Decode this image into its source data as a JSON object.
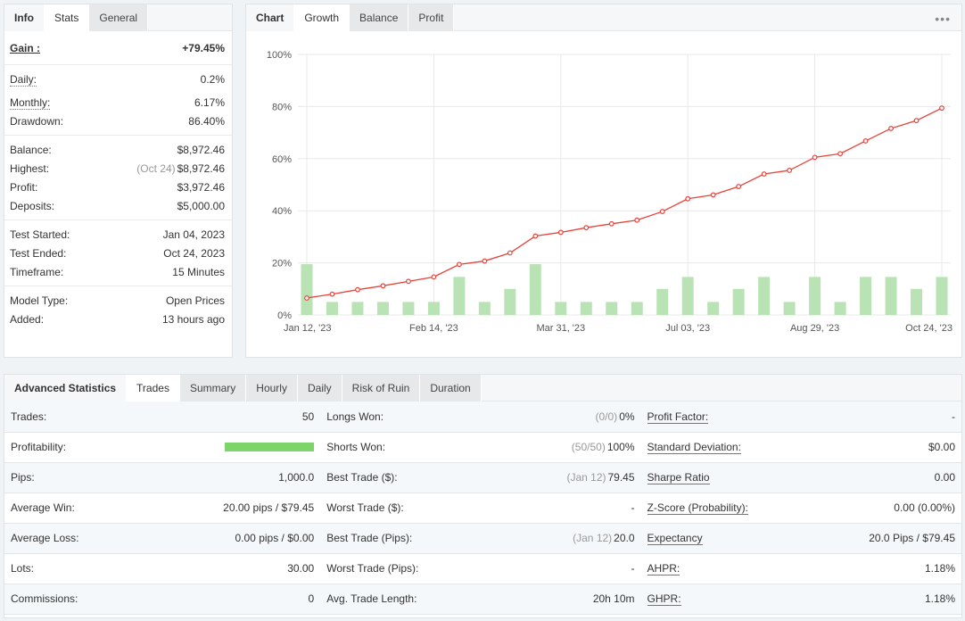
{
  "info": {
    "tabs": [
      "Info",
      "Stats",
      "General"
    ],
    "gain_label": "Gain :",
    "gain_value": "+79.45%",
    "daily_label": "Daily:",
    "daily_value": "0.2%",
    "monthly_label": "Monthly:",
    "monthly_value": "6.17%",
    "drawdown_label": "Drawdown:",
    "drawdown_value": "86.40%",
    "balance_label": "Balance:",
    "balance_value": "$8,972.46",
    "highest_label": "Highest:",
    "highest_date": "(Oct 24)",
    "highest_value": "$8,972.46",
    "profit_label": "Profit:",
    "profit_value": "$3,972.46",
    "deposits_label": "Deposits:",
    "deposits_value": "$5,000.00",
    "test_started_label": "Test Started:",
    "test_started_value": "Jan 04, 2023",
    "test_ended_label": "Test Ended:",
    "test_ended_value": "Oct 24, 2023",
    "timeframe_label": "Timeframe:",
    "timeframe_value": "15 Minutes",
    "model_type_label": "Model Type:",
    "model_type_value": "Open Prices",
    "added_label": "Added:",
    "added_value": "13 hours ago"
  },
  "chart_panel": {
    "tabs": [
      "Chart",
      "Growth",
      "Balance",
      "Profit"
    ],
    "menu_icon": "more-dots-icon",
    "colors": {
      "line": "#e8413a",
      "bar": "#b9e3b4",
      "grid": "#e8e8e8"
    }
  },
  "chart_data": {
    "type": "bar+line",
    "y_ticks": [
      "0%",
      "20%",
      "40%",
      "60%",
      "80%",
      "100%"
    ],
    "ylim": [
      0,
      100
    ],
    "x_tick_labels": [
      "Jan 12, '23",
      "Feb 14, '23",
      "Mar 31, '23",
      "Jul 03, '23",
      "Aug 29, '23",
      "Oct 24, '23"
    ],
    "growth_line": [
      6.5,
      8,
      9.7,
      11.2,
      12.9,
      14.6,
      19.4,
      20.7,
      23.8,
      30.3,
      31.7,
      33.5,
      35,
      36.4,
      39.7,
      44.6,
      46.1,
      49.3,
      54.1,
      55.5,
      60.5,
      61.9,
      66.8,
      71.6,
      74.6,
      79.4
    ],
    "bars": [
      19.5,
      5,
      5,
      5,
      5,
      5,
      14.6,
      5,
      10,
      19.5,
      5,
      5,
      5,
      5,
      10,
      14.6,
      5,
      10,
      14.6,
      5,
      14.6,
      5,
      14.6,
      14.6,
      10,
      14.6
    ]
  },
  "advanced": {
    "tabs": [
      "Advanced Statistics",
      "Trades",
      "Summary",
      "Hourly",
      "Daily",
      "Risk of Ruin",
      "Duration"
    ],
    "rows": [
      {
        "l1": "Trades:",
        "v1": "50",
        "l2": "Longs Won:",
        "m2": "(0/0)",
        "v2": "0%",
        "l3": "Profit Factor:",
        "v3": "-"
      },
      {
        "l1": "Profitability:",
        "v1": "",
        "l2": "Shorts Won:",
        "m2": "(50/50)",
        "v2": "100%",
        "l3": "Standard Deviation:",
        "v3": "$0.00"
      },
      {
        "l1": "Pips:",
        "v1": "1,000.0",
        "l2": "Best Trade ($):",
        "m2": "(Jan 12)",
        "v2": "79.45",
        "l3": "Sharpe Ratio",
        "v3": "0.00"
      },
      {
        "l1": "Average Win:",
        "v1": "20.00 pips / $79.45",
        "l2": "Worst Trade ($):",
        "m2": "",
        "v2": "-",
        "l3": "Z-Score (Probability):",
        "v3": "0.00 (0.00%)"
      },
      {
        "l1": "Average Loss:",
        "v1": "0.00 pips / $0.00",
        "l2": "Best Trade (Pips):",
        "m2": "(Jan 12)",
        "v2": "20.0",
        "l3": "Expectancy",
        "v3": "20.0 Pips / $79.45"
      },
      {
        "l1": "Lots:",
        "v1": "30.00",
        "l2": "Worst Trade (Pips):",
        "m2": "",
        "v2": "-",
        "l3": "AHPR:",
        "v3": "1.18%"
      },
      {
        "l1": "Commissions:",
        "v1": "0",
        "l2": "Avg. Trade Length:",
        "m2": "",
        "v2": "20h 10m",
        "l3": "GHPR:",
        "v3": "1.18%"
      }
    ],
    "profitability_fill": 1.0
  }
}
